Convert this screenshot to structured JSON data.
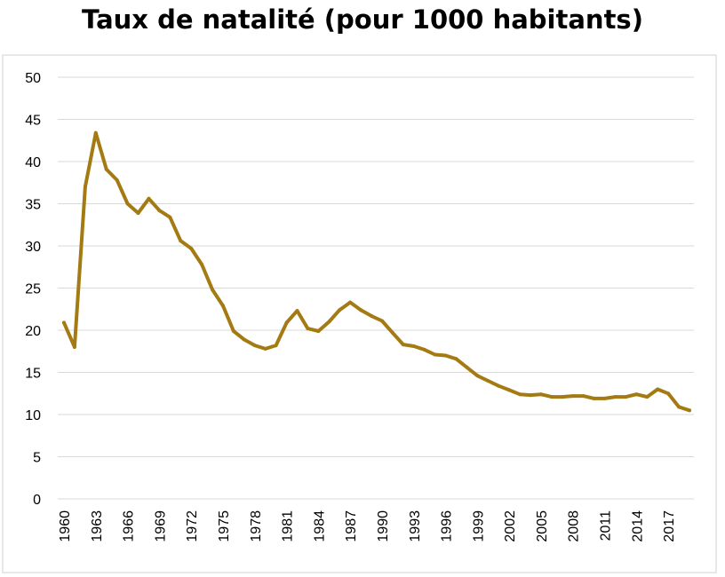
{
  "chart_data": {
    "type": "line",
    "title": "Taux de natalité (pour 1000 habitants)",
    "xlabel": "",
    "ylabel": "",
    "ylim": [
      0,
      50
    ],
    "yticks": [
      0,
      5,
      10,
      15,
      20,
      25,
      30,
      35,
      40,
      45,
      50
    ],
    "xlim": [
      1960,
      2019
    ],
    "xticks": [
      1960,
      1963,
      1966,
      1969,
      1972,
      1975,
      1978,
      1981,
      1984,
      1987,
      1990,
      1993,
      1996,
      1999,
      2002,
      2005,
      2008,
      2011,
      2014,
      2017
    ],
    "grid": true,
    "legend": "none",
    "color": "#a47a13",
    "series": [
      {
        "x": [
          1960,
          1961,
          1962,
          1963,
          1964,
          1965,
          1966,
          1967,
          1968,
          1969,
          1970,
          1971,
          1972,
          1973,
          1974,
          1975,
          1976,
          1977,
          1978,
          1979,
          1980,
          1981,
          1982,
          1983,
          1984,
          1985,
          1986,
          1987,
          1988,
          1989,
          1990,
          1991,
          1992,
          1993,
          1994,
          1995,
          1996,
          1997,
          1998,
          1999,
          2000,
          2001,
          2002,
          2003,
          2004,
          2005,
          2006,
          2007,
          2008,
          2009,
          2010,
          2011,
          2012,
          2013,
          2014,
          2015,
          2016,
          2017,
          2018,
          2019
        ],
        "values": [
          20.9,
          18.0,
          37.0,
          43.4,
          39.1,
          37.8,
          35.0,
          33.9,
          35.6,
          34.2,
          33.4,
          30.6,
          29.7,
          27.8,
          24.8,
          22.9,
          19.9,
          18.9,
          18.2,
          17.8,
          18.2,
          20.9,
          22.3,
          20.2,
          19.9,
          21.0,
          22.4,
          23.3,
          22.4,
          21.7,
          21.1,
          19.7,
          18.3,
          18.1,
          17.7,
          17.1,
          17.0,
          16.6,
          15.6,
          14.6,
          14.0,
          13.4,
          12.9,
          12.4,
          12.3,
          12.4,
          12.1,
          12.1,
          12.2,
          12.2,
          11.9,
          11.9,
          12.1,
          12.1,
          12.4,
          12.1,
          13.0,
          12.5,
          10.9,
          10.5
        ]
      }
    ]
  }
}
